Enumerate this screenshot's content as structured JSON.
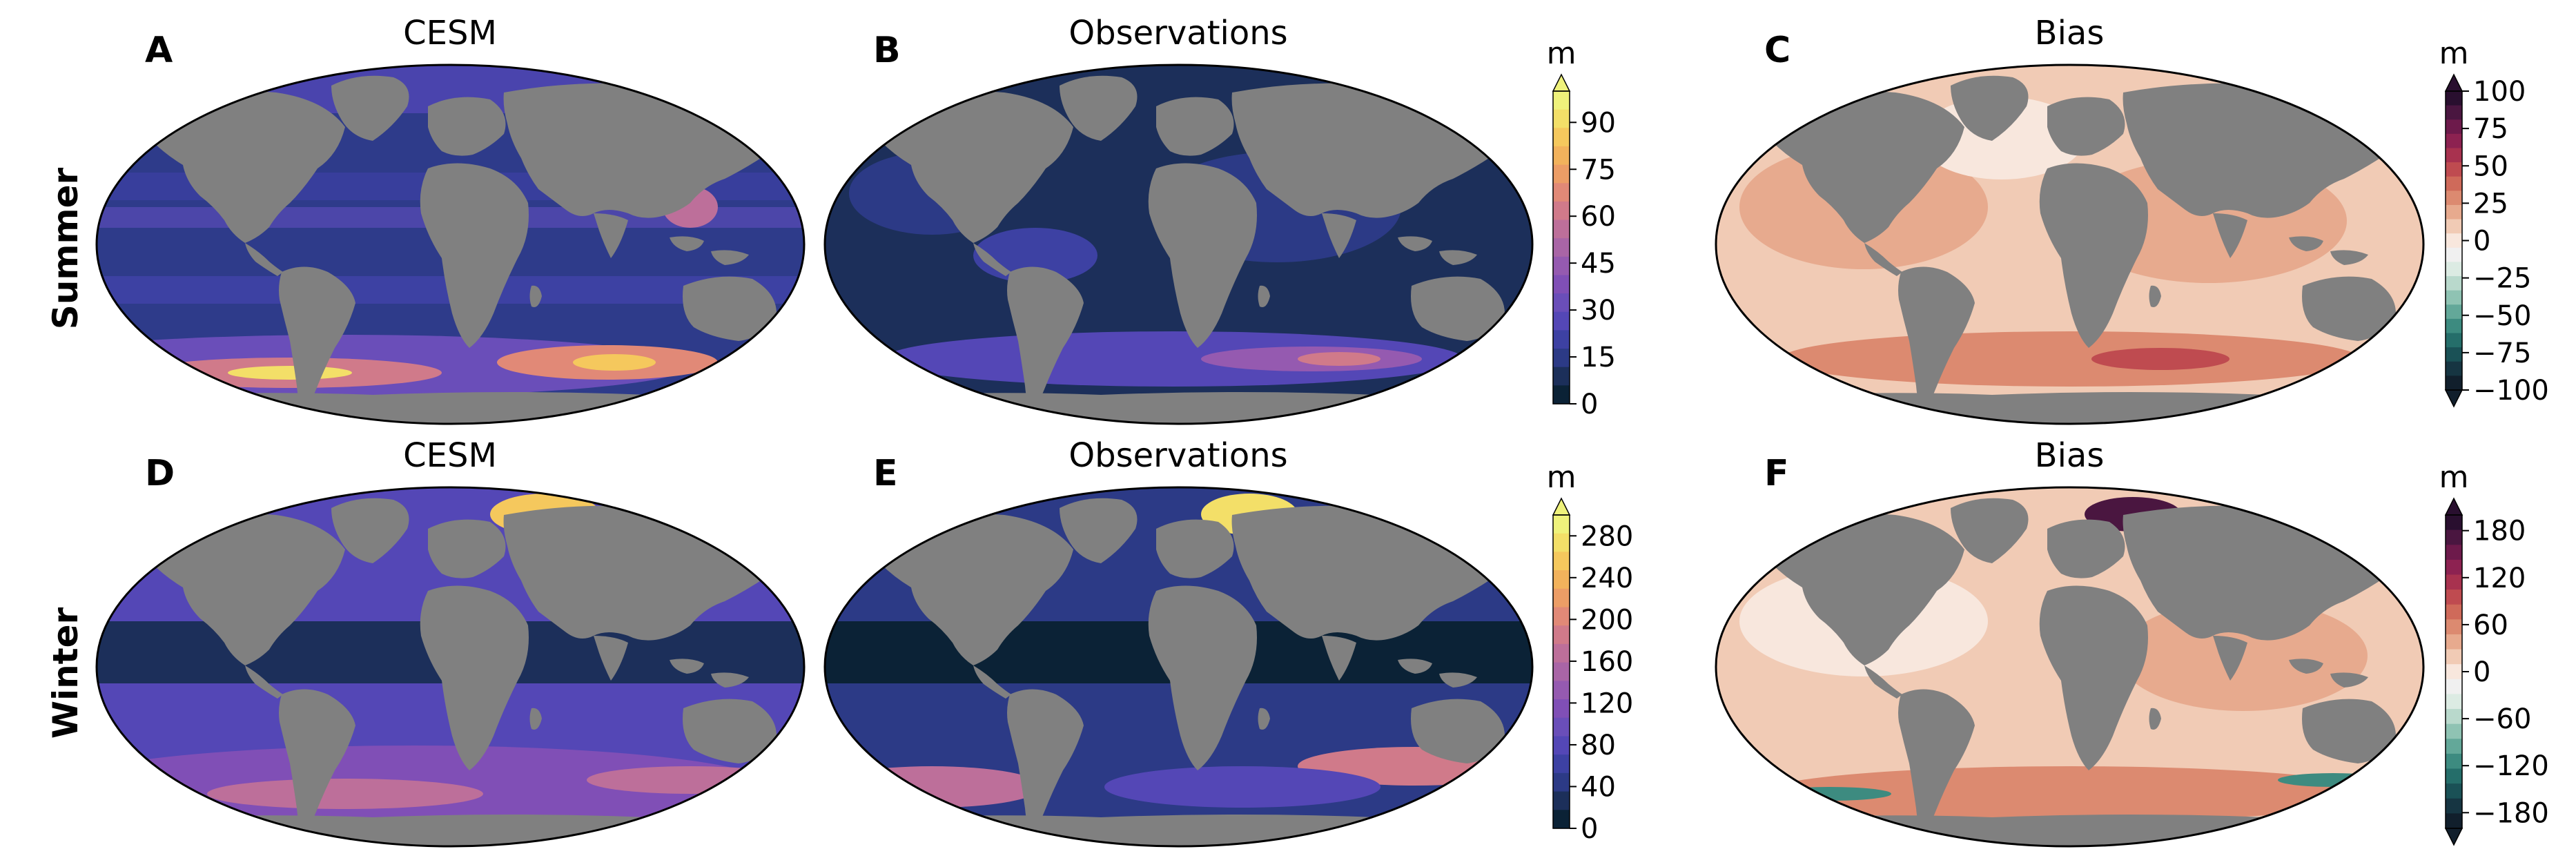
{
  "row_labels": [
    "Summer",
    "Winter"
  ],
  "panels": [
    {
      "letter": "A",
      "title": "CESM"
    },
    {
      "letter": "B",
      "title": "Observations"
    },
    {
      "letter": "C",
      "title": "Bias"
    },
    {
      "letter": "D",
      "title": "CESM"
    },
    {
      "letter": "E",
      "title": "Observations"
    },
    {
      "letter": "F",
      "title": "Bias"
    }
  ],
  "colorbars": [
    {
      "id": "summer-depth",
      "unit": "m",
      "ticks": [
        "0",
        "15",
        "30",
        "45",
        "60",
        "75",
        "90"
      ],
      "min": 0,
      "max": 100,
      "extend": "max",
      "colors": [
        "#0b2236",
        "#1c2f5a",
        "#2c3a86",
        "#3d41a3",
        "#5447b6",
        "#6a4eb9",
        "#804fb6",
        "#955ab0",
        "#a965a6",
        "#bd6f9a",
        "#d07a8a",
        "#e18977",
        "#ec9d66",
        "#f2b25c",
        "#f5c85d",
        "#f3df68",
        "#eff27b"
      ]
    },
    {
      "id": "summer-bias",
      "unit": "m",
      "ticks": [
        "100",
        "75",
        "50",
        "25",
        "0",
        "−25",
        "−50",
        "−75",
        "−100"
      ],
      "min": -100,
      "max": 100,
      "extend": "both",
      "colors": [
        "#290f2f",
        "#4a1640",
        "#6d1a4b",
        "#8d2251",
        "#a8324f",
        "#bf4b50",
        "#cf6a5a",
        "#dc8a70",
        "#e7aa8e",
        "#f1cbb5",
        "#f8e7dd",
        "#f0f0f0",
        "#dcebe3",
        "#b9d9cc",
        "#8fc3b3",
        "#63a899",
        "#3d8b80",
        "#256e6a",
        "#1a5156",
        "#163542",
        "#111f2c"
      ]
    },
    {
      "id": "winter-depth",
      "unit": "m",
      "ticks": [
        "0",
        "40",
        "80",
        "120",
        "160",
        "200",
        "240",
        "280"
      ],
      "min": 0,
      "max": 300,
      "extend": "max",
      "colors": [
        "#0b2236",
        "#1c2f5a",
        "#2c3a86",
        "#3d41a3",
        "#5447b6",
        "#6a4eb9",
        "#804fb6",
        "#955ab0",
        "#a965a6",
        "#bd6f9a",
        "#d07a8a",
        "#e18977",
        "#ec9d66",
        "#f2b25c",
        "#f5c85d",
        "#f3df68",
        "#eff27b"
      ]
    },
    {
      "id": "winter-bias",
      "unit": "m",
      "ticks": [
        "180",
        "120",
        "60",
        "0",
        "−60",
        "−120",
        "−180"
      ],
      "min": -200,
      "max": 200,
      "extend": "both",
      "colors": [
        "#290f2f",
        "#4a1640",
        "#6d1a4b",
        "#8d2251",
        "#a8324f",
        "#bf4b50",
        "#cf6a5a",
        "#dc8a70",
        "#e7aa8e",
        "#f1cbb5",
        "#f8e7dd",
        "#f0f0f0",
        "#dcebe3",
        "#b9d9cc",
        "#8fc3b3",
        "#63a899",
        "#3d8b80",
        "#256e6a",
        "#1a5156",
        "#163542",
        "#111f2c"
      ]
    }
  ],
  "colors": {
    "land": "#808080",
    "outline": "#000000"
  }
}
